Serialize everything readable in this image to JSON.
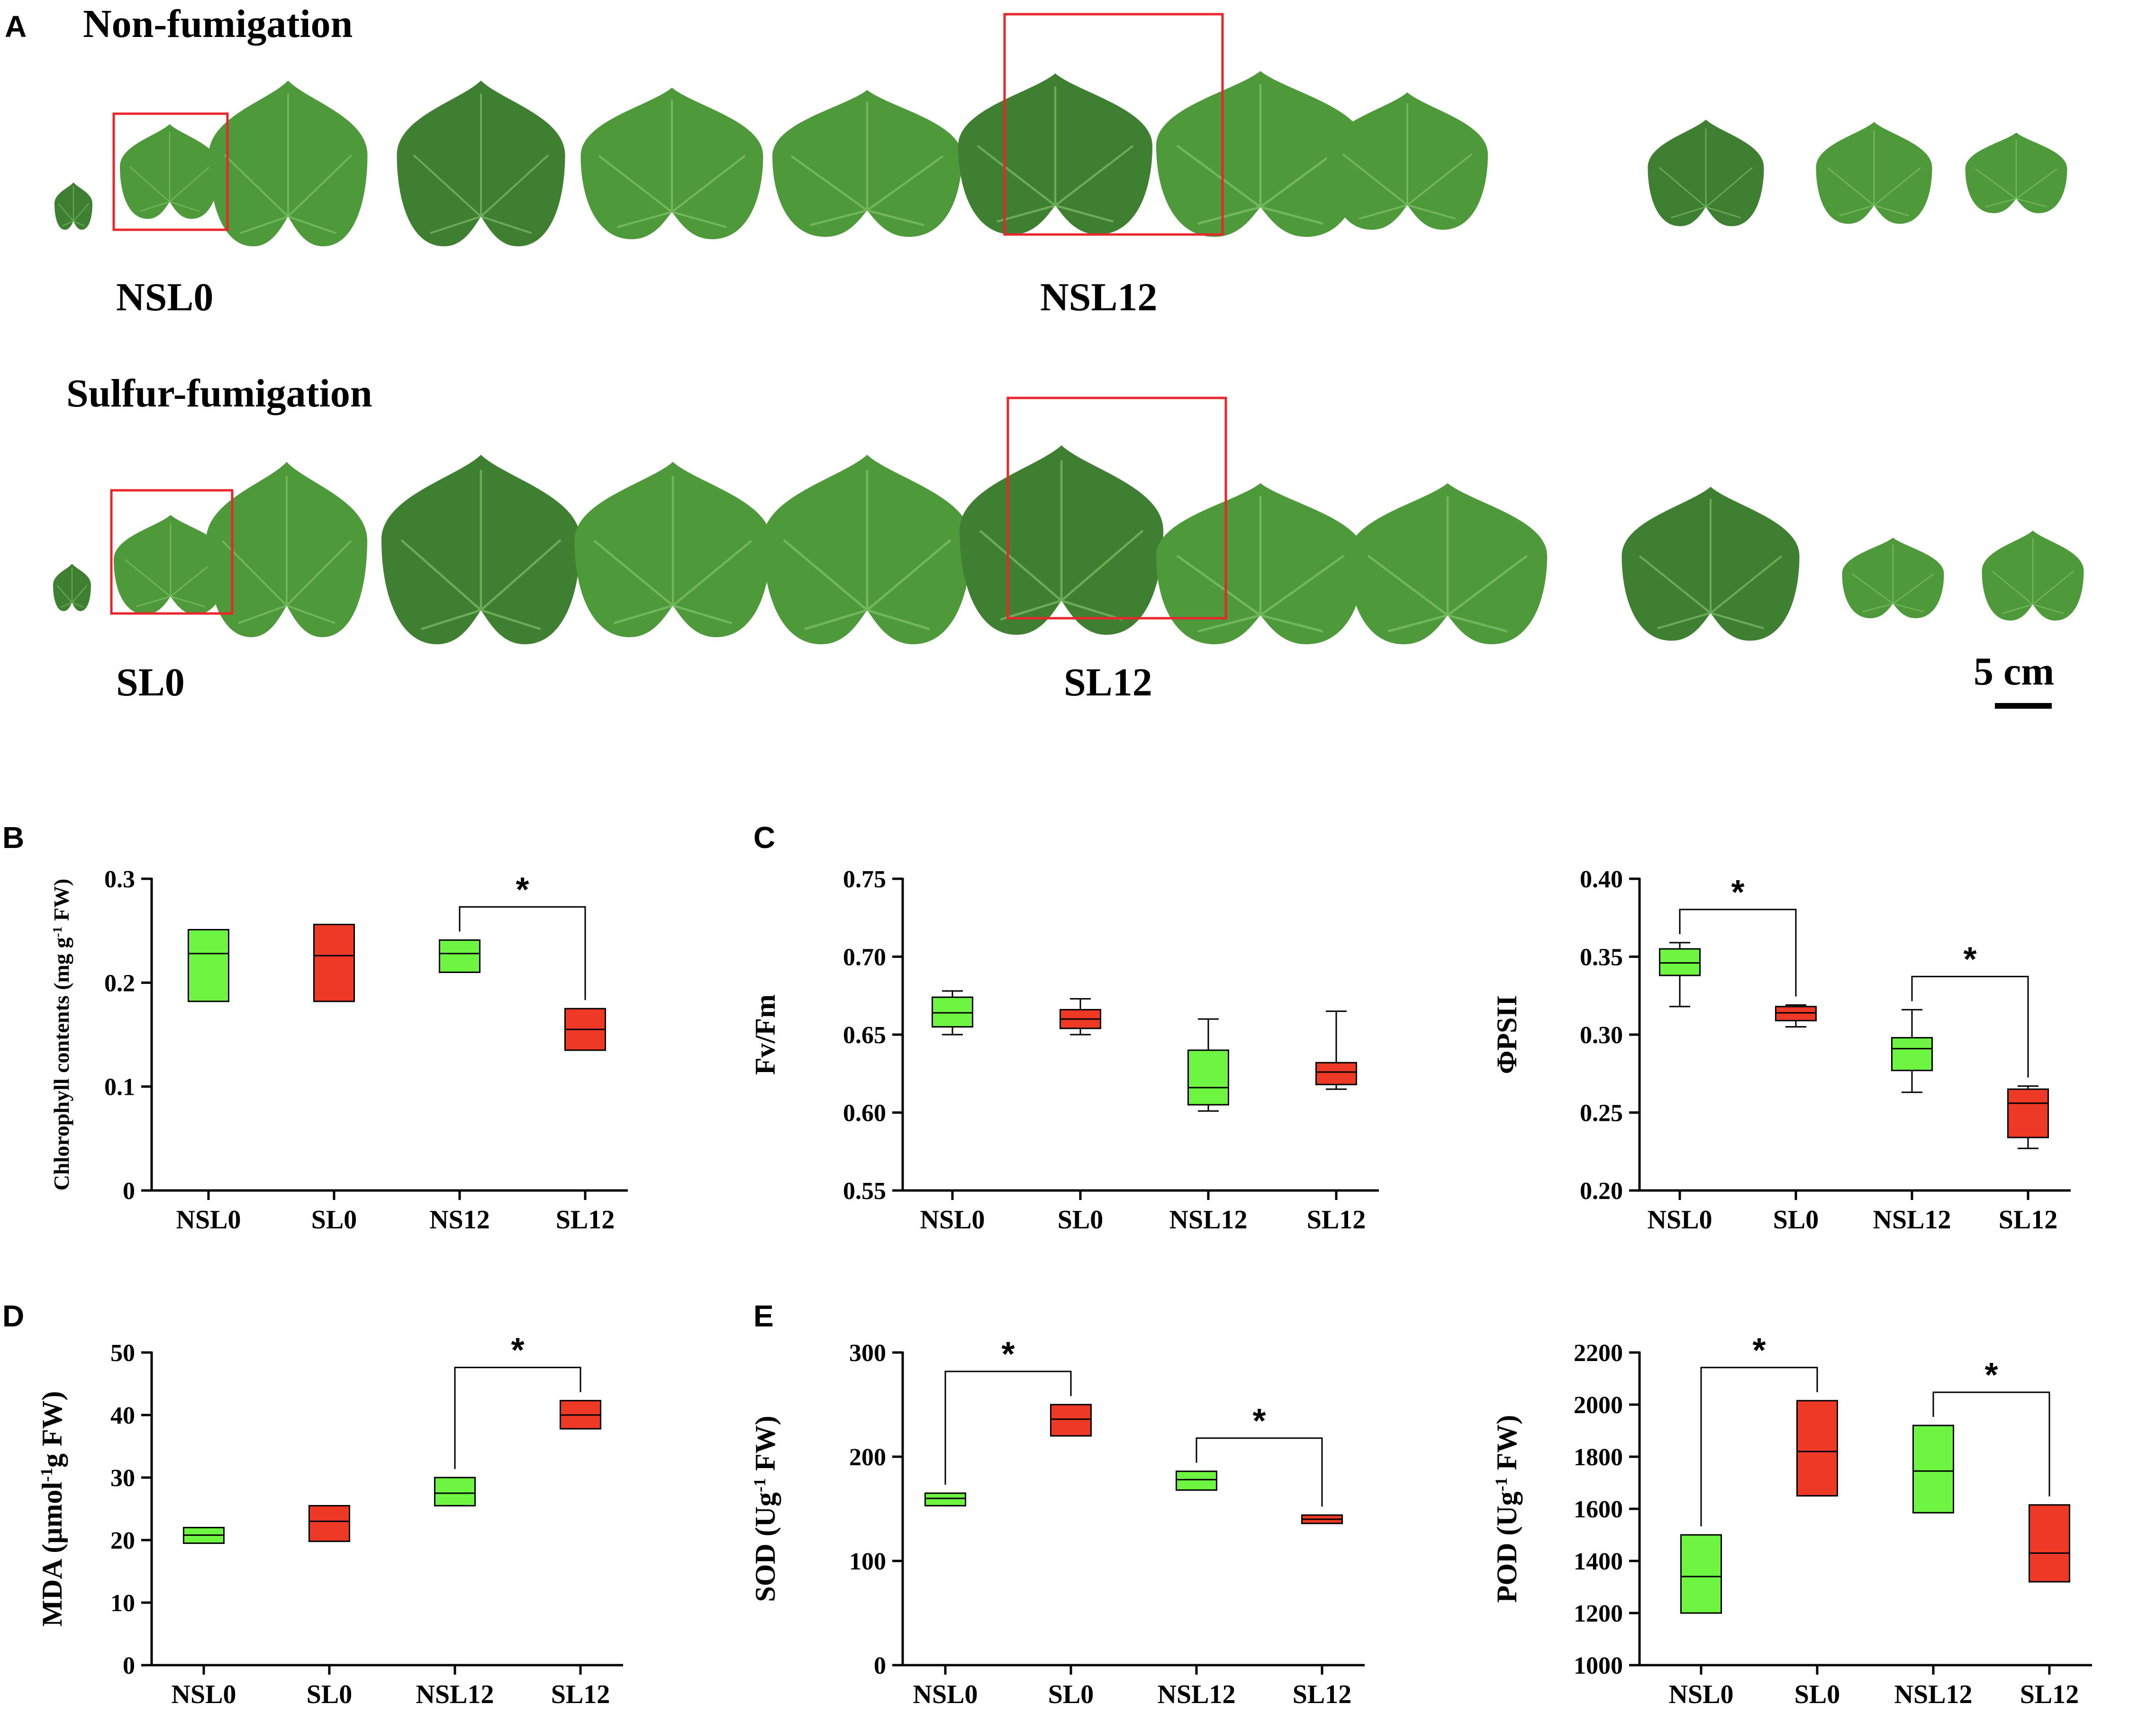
{
  "panel_a": {
    "letter": "A",
    "rows": [
      {
        "title": "Non-fumigation",
        "labels": [
          "NSL0",
          "NSL12"
        ]
      },
      {
        "title": "Sulfur-fumigation",
        "labels": [
          "SL0",
          "SL12"
        ]
      }
    ],
    "scale_bar": "5 cm",
    "colors": {
      "leaf": "#4e9a3a",
      "leaf_dark": "#3f7f31",
      "vein": "#8fcf7a",
      "highlight_box": "#e8262b"
    }
  },
  "significance_mark": "*",
  "colors": {
    "nonfumigated": "#6ef542",
    "fumigated": "#ee3a24",
    "axis": "#000000"
  },
  "chart_data": [
    {
      "panel": "B",
      "type": "box",
      "ylabel": "Chlorophyll contents (mg g-1 FW)",
      "ylim": [
        0,
        0.3
      ],
      "yticks": [
        "0",
        "0.1",
        "0.2",
        "0.3"
      ],
      "categories": [
        "NSL0",
        "SL0",
        "NS12",
        "SL12"
      ],
      "boxes": [
        {
          "q1": 0.182,
          "median": 0.228,
          "q3": 0.251,
          "min": null,
          "max": null,
          "group": "nonfumigated"
        },
        {
          "q1": 0.182,
          "median": 0.226,
          "q3": 0.256,
          "min": null,
          "max": null,
          "group": "fumigated"
        },
        {
          "q1": 0.21,
          "median": 0.228,
          "q3": 0.241,
          "min": null,
          "max": null,
          "group": "nonfumigated"
        },
        {
          "q1": 0.135,
          "median": 0.155,
          "q3": 0.175,
          "min": null,
          "max": null,
          "group": "fumigated"
        }
      ],
      "significance": [
        {
          "from": 2,
          "to": 3,
          "label": "*"
        }
      ]
    },
    {
      "panel": "C",
      "type": "box",
      "ylabel": "Fv/Fm",
      "ylim": [
        0.55,
        0.75
      ],
      "yticks": [
        "0.55",
        "0.60",
        "0.65",
        "0.70",
        "0.75"
      ],
      "categories": [
        "NSL0",
        "SL0",
        "NSL12",
        "SL12"
      ],
      "boxes": [
        {
          "q1": 0.655,
          "median": 0.664,
          "q3": 0.674,
          "min": 0.65,
          "max": 0.678,
          "group": "nonfumigated"
        },
        {
          "q1": 0.654,
          "median": 0.66,
          "q3": 0.666,
          "min": 0.65,
          "max": 0.673,
          "group": "fumigated"
        },
        {
          "q1": 0.605,
          "median": 0.616,
          "q3": 0.64,
          "min": 0.601,
          "max": 0.66,
          "group": "nonfumigated"
        },
        {
          "q1": 0.618,
          "median": 0.626,
          "q3": 0.632,
          "min": 0.615,
          "max": 0.665,
          "group": "fumigated"
        }
      ],
      "significance": []
    },
    {
      "panel": "C",
      "type": "box",
      "ylabel": "ΦPSII",
      "ylim": [
        0.2,
        0.4
      ],
      "yticks": [
        "0.20",
        "0.25",
        "0.30",
        "0.35",
        "0.40"
      ],
      "categories": [
        "NSL0",
        "SL0",
        "NSL12",
        "SL12"
      ],
      "boxes": [
        {
          "q1": 0.338,
          "median": 0.346,
          "q3": 0.355,
          "min": 0.318,
          "max": 0.359,
          "group": "nonfumigated"
        },
        {
          "q1": 0.309,
          "median": 0.314,
          "q3": 0.318,
          "min": 0.305,
          "max": 0.319,
          "group": "fumigated"
        },
        {
          "q1": 0.277,
          "median": 0.291,
          "q3": 0.298,
          "min": 0.263,
          "max": 0.316,
          "group": "nonfumigated"
        },
        {
          "q1": 0.234,
          "median": 0.256,
          "q3": 0.265,
          "min": 0.227,
          "max": 0.267,
          "group": "fumigated"
        }
      ],
      "significance": [
        {
          "from": 0,
          "to": 1,
          "label": "*"
        },
        {
          "from": 2,
          "to": 3,
          "label": "*"
        }
      ]
    },
    {
      "panel": "D",
      "type": "box",
      "ylabel": "MDA (μmol-1g FW)",
      "ylim": [
        0,
        50
      ],
      "yticks": [
        "0",
        "10",
        "20",
        "30",
        "40",
        "50"
      ],
      "categories": [
        "NSL0",
        "SL0",
        "NSL12",
        "SL12"
      ],
      "boxes": [
        {
          "q1": 19.5,
          "median": 20.8,
          "q3": 22.0,
          "min": null,
          "max": null,
          "group": "nonfumigated"
        },
        {
          "q1": 19.8,
          "median": 23.0,
          "q3": 25.5,
          "min": null,
          "max": null,
          "group": "fumigated"
        },
        {
          "q1": 25.5,
          "median": 27.5,
          "q3": 30.0,
          "min": null,
          "max": null,
          "group": "nonfumigated"
        },
        {
          "q1": 37.8,
          "median": 40.0,
          "q3": 42.3,
          "min": null,
          "max": null,
          "group": "fumigated"
        }
      ],
      "significance": [
        {
          "from": 2,
          "to": 3,
          "label": "*"
        }
      ]
    },
    {
      "panel": "E",
      "type": "box",
      "ylabel": "SOD (Ug-1 FW)",
      "ylim": [
        0,
        300
      ],
      "yticks": [
        "0",
        "100",
        "200",
        "300"
      ],
      "categories": [
        "NSL0",
        "SL0",
        "NSL12",
        "SL12"
      ],
      "boxes": [
        {
          "q1": 153,
          "median": 160,
          "q3": 165,
          "min": null,
          "max": null,
          "group": "nonfumigated"
        },
        {
          "q1": 220,
          "median": 236,
          "q3": 250,
          "min": null,
          "max": null,
          "group": "fumigated"
        },
        {
          "q1": 168,
          "median": 178,
          "q3": 186,
          "min": null,
          "max": null,
          "group": "nonfumigated"
        },
        {
          "q1": 136,
          "median": 140,
          "q3": 144,
          "min": null,
          "max": null,
          "group": "fumigated"
        }
      ],
      "significance": [
        {
          "from": 0,
          "to": 1,
          "label": "*"
        },
        {
          "from": 2,
          "to": 3,
          "label": "*"
        }
      ]
    },
    {
      "panel": "E",
      "type": "box",
      "ylabel": "POD (Ug-1 FW)",
      "ylim": [
        1000,
        2200
      ],
      "yticks": [
        "1000",
        "1200",
        "1400",
        "1600",
        "1800",
        "2000",
        "2200"
      ],
      "categories": [
        "NSL0",
        "SL0",
        "NSL12",
        "SL12"
      ],
      "boxes": [
        {
          "q1": 1200,
          "median": 1340,
          "q3": 1500,
          "min": null,
          "max": null,
          "group": "nonfumigated"
        },
        {
          "q1": 1650,
          "median": 1820,
          "q3": 2015,
          "min": null,
          "max": null,
          "group": "fumigated"
        },
        {
          "q1": 1585,
          "median": 1745,
          "q3": 1920,
          "min": null,
          "max": null,
          "group": "nonfumigated"
        },
        {
          "q1": 1320,
          "median": 1430,
          "q3": 1615,
          "min": null,
          "max": null,
          "group": "fumigated"
        }
      ],
      "significance": [
        {
          "from": 0,
          "to": 1,
          "label": "*"
        },
        {
          "from": 2,
          "to": 3,
          "label": "*"
        }
      ]
    }
  ]
}
